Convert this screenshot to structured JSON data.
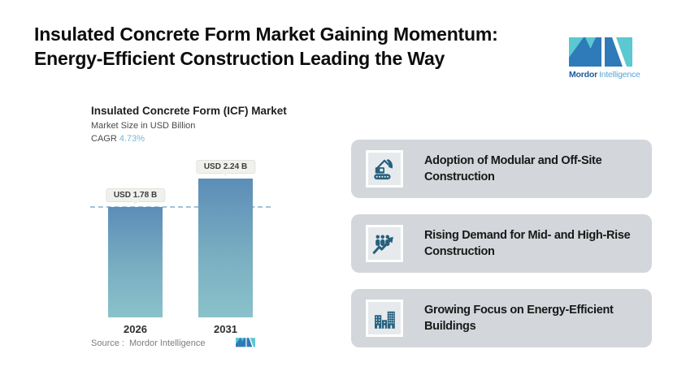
{
  "header": {
    "title_line1": "Insulated Concrete Form Market Gaining Momentum:",
    "title_line2": "Energy-Efficient Construction Leading the Way"
  },
  "brand": {
    "name_bold": "Mordor",
    "name_regular": "Intelligence"
  },
  "chart": {
    "title": "Insulated Concrete Form (ICF) Market",
    "subtitle": "Market Size in USD Billion",
    "cagr_label": "CAGR",
    "cagr_value": "4.73%",
    "source_label": "Source :",
    "source_name": "Mordor Intelligence"
  },
  "chart_data": {
    "type": "bar",
    "title": "Insulated Concrete Form (ICF) Market",
    "ylabel": "Market Size in USD Billion",
    "xlabel": "",
    "categories": [
      "2026",
      "2031"
    ],
    "values": [
      1.78,
      2.24
    ],
    "value_labels": [
      "USD 1.78 B",
      "USD 2.24 B"
    ],
    "cagr_pct": 4.73,
    "ylim": [
      0,
      2.5
    ],
    "grid": false,
    "legend": "none",
    "reference_line": {
      "style": "dashed",
      "at_value": 1.78
    }
  },
  "drivers": [
    {
      "icon": "excavator-icon",
      "label": "Adoption of Modular and Off-Site Construction"
    },
    {
      "icon": "people-growth-icon",
      "label": "Rising Demand for Mid- and High-Rise Construction"
    },
    {
      "icon": "buildings-icon",
      "label": "Growing Focus on Energy-Efficient Buildings"
    }
  ],
  "colors": {
    "bar_top": "#5c8db8",
    "bar_bottom": "#8ac2ca",
    "dashed_line": "#a3c3da",
    "cagr_value": "#79b5d6",
    "card_bg": "#d3d6da",
    "icon_blue": "#26617f",
    "logo_teal": "#5bc8d2",
    "logo_blue": "#2f7ab8",
    "brand_bold_color": "#1b5a9b",
    "brand_regular_color": "#56a7d8"
  }
}
